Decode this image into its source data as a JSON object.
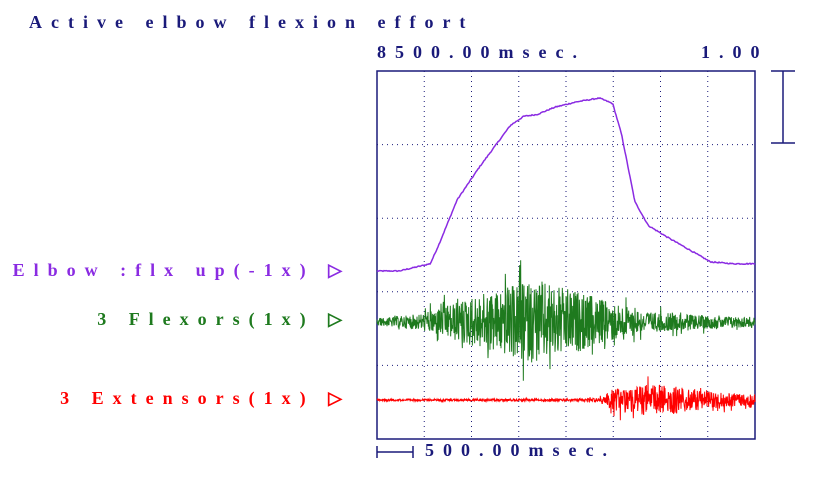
{
  "header": {
    "title": "Active elbow flexion effort",
    "top_scale": "8500.00msec.",
    "gain": "1.00"
  },
  "footer": {
    "time_scale": "500.00msec."
  },
  "chart_data": {
    "type": "line",
    "title": "Active elbow flexion effort",
    "xlabel": "",
    "ylabel": "",
    "x_range_ms": [
      0,
      8500
    ],
    "grid": true,
    "series": [
      {
        "name": "Elbow:flx up(-1x)",
        "label": "Elbow :flx up(-1x) ▷",
        "color": "#8a2be2",
        "kind": "envelope",
        "x": [
          0,
          500,
          1200,
          1400,
          1800,
          2300,
          3000,
          3300,
          3600,
          4000,
          4500,
          5000,
          5300,
          5500,
          5800,
          6100,
          6500,
          7000,
          7500,
          8000,
          8500
        ],
        "values": [
          0.0,
          0.0,
          0.04,
          0.15,
          0.39,
          0.57,
          0.8,
          0.85,
          0.86,
          0.9,
          0.93,
          0.95,
          0.92,
          0.75,
          0.38,
          0.25,
          0.19,
          0.12,
          0.05,
          0.04,
          0.04
        ]
      },
      {
        "name": "3 Flexors(1x)",
        "label": "3 Flexors(1x) ▷",
        "color": "#1e7a1e",
        "kind": "emg",
        "burst": [
          [
            0,
            0.08
          ],
          [
            1000,
            0.2
          ],
          [
            2000,
            0.55
          ],
          [
            3000,
            0.85
          ],
          [
            3600,
            1.0
          ],
          [
            4400,
            0.75
          ],
          [
            5200,
            0.5
          ],
          [
            6000,
            0.25
          ],
          [
            7000,
            0.18
          ],
          [
            8500,
            0.12
          ]
        ]
      },
      {
        "name": "3 Extensors(1x)",
        "label": "3 Extensors(1x) ▷",
        "color": "#ff0000",
        "kind": "emg",
        "burst": [
          [
            0,
            0.05
          ],
          [
            2500,
            0.06
          ],
          [
            4500,
            0.07
          ],
          [
            5000,
            0.12
          ],
          [
            5300,
            0.6
          ],
          [
            6000,
            0.85
          ],
          [
            6700,
            0.8
          ],
          [
            7500,
            0.45
          ],
          [
            8500,
            0.3
          ]
        ]
      }
    ]
  }
}
